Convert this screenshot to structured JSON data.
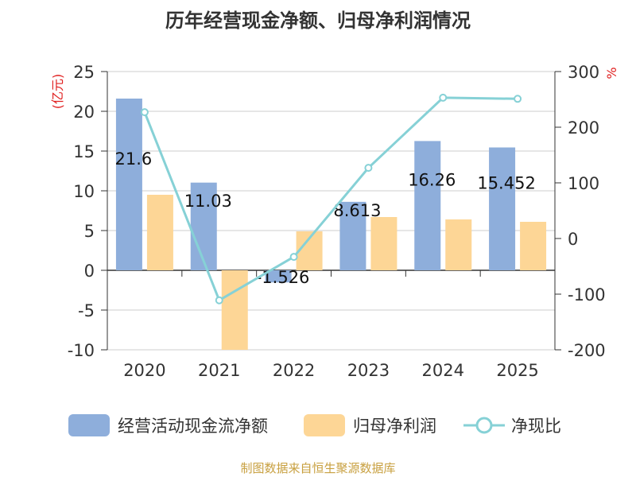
{
  "chart_data": {
    "type": "bar",
    "title": "历年经营现金净额、归母净利润情况",
    "categories": [
      "2020",
      "2021",
      "2022",
      "2023",
      "2024",
      "2025"
    ],
    "y_left": {
      "label": "(亿元)",
      "ticks": [
        "25",
        "20",
        "15",
        "10",
        "5",
        "0",
        "-5",
        "-10"
      ],
      "range": [
        -10,
        25
      ]
    },
    "y_right": {
      "label": "%",
      "ticks": [
        "300",
        "200",
        "100",
        "0",
        "-100",
        "-200"
      ],
      "range": [
        -200,
        300
      ]
    },
    "series": [
      {
        "name": "经营活动现金流净额",
        "type": "bar",
        "axis": "left",
        "color": "#8eaedb",
        "values": [
          21.6,
          11.03,
          -1.526,
          8.613,
          16.26,
          15.452
        ],
        "labels": [
          "21.6",
          "11.03",
          "-1.526",
          "8.613",
          "16.26",
          "15.452"
        ]
      },
      {
        "name": "归母净利润",
        "type": "bar",
        "axis": "left",
        "color": "#fdd696",
        "values": [
          9.5,
          -10,
          4.9,
          6.7,
          6.4,
          6.1
        ]
      },
      {
        "name": "净现比",
        "type": "line",
        "axis": "right",
        "color": "#86d1d6",
        "values": [
          227,
          -111,
          -33,
          127,
          253,
          251
        ]
      }
    ],
    "grid": true
  },
  "source": "制图数据来自恒生聚源数据库"
}
